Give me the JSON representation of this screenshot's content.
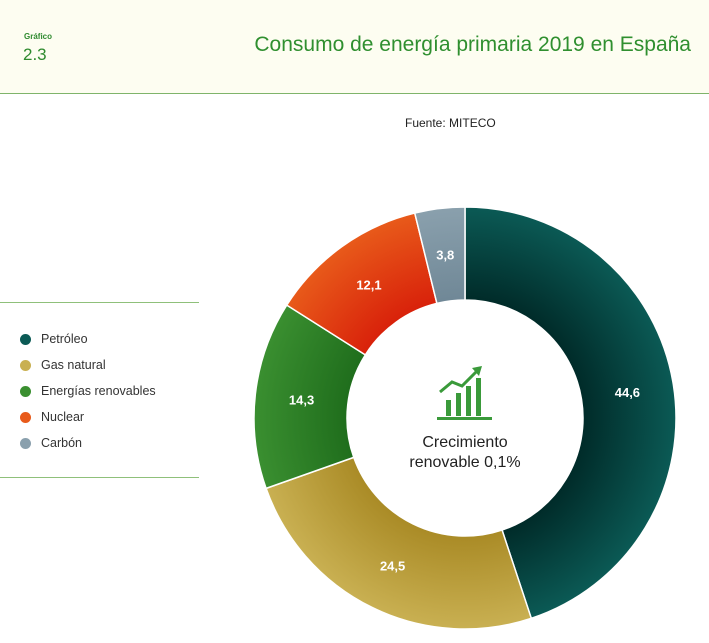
{
  "header": {
    "label": "Gráfico",
    "number": "2.3",
    "title": "Consumo de energía primaria 2019 en España"
  },
  "source": "Fuente: MITECO",
  "center": {
    "line1": "Crecimiento",
    "line2": "renovable 0,1%",
    "icon": "growth-chart-icon"
  },
  "chart_data": {
    "type": "pie",
    "donut": true,
    "categories": [
      "Petróleo",
      "Gas natural",
      "Energías renovables",
      "Nuclear",
      "Carbón"
    ],
    "values": [
      44.6,
      24.5,
      14.3,
      12.1,
      3.8
    ],
    "value_labels": [
      "44,6",
      "24,5",
      "14,3",
      "12,1",
      "3,8"
    ],
    "colors": [
      "#0b5a55",
      "#c9b052",
      "#3a8f30",
      "#e85a1a",
      "#8aa0ad"
    ],
    "title": "Consumo de energía primaria 2019 en España",
    "legend": "left"
  }
}
